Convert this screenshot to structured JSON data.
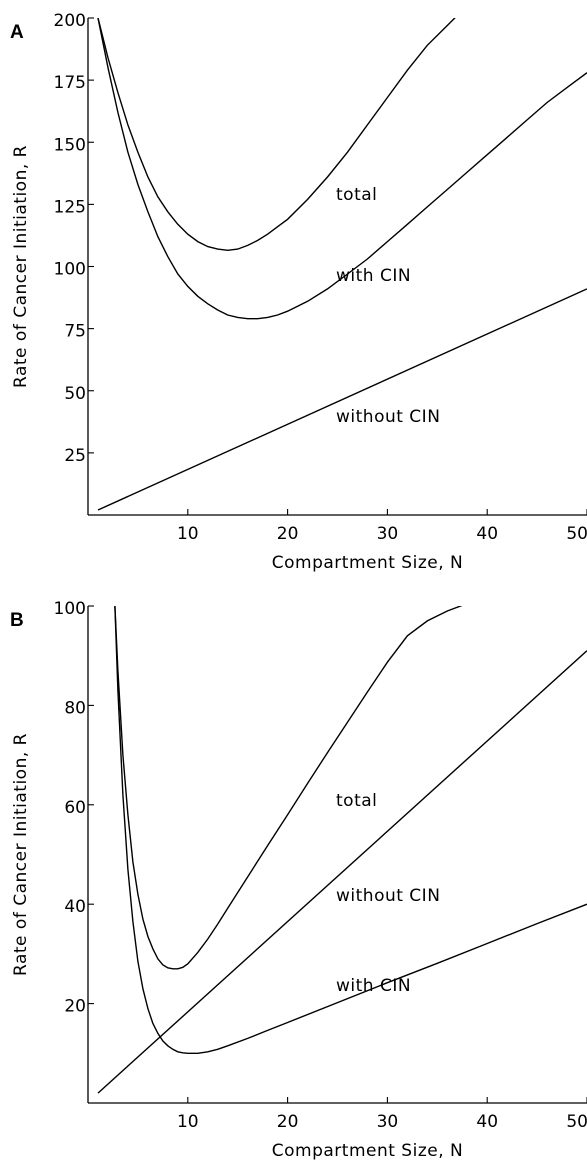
{
  "chart_data": [
    {
      "type": "line",
      "panel_label": "A",
      "xlabel": "Compartment Size, N",
      "ylabel": "Rate of Cancer Initiation, R",
      "xlim": [
        0,
        50
      ],
      "ylim": [
        0,
        200
      ],
      "xticks": [
        10,
        20,
        30,
        40,
        50
      ],
      "yticks": [
        25,
        50,
        75,
        100,
        125,
        150,
        175,
        200
      ],
      "legend": "none",
      "grid": false,
      "series": [
        {
          "name": "total",
          "x": [
            1,
            2,
            3,
            4,
            5,
            6,
            7,
            8,
            9,
            10,
            11,
            12,
            13,
            14,
            15,
            16,
            17,
            18,
            19,
            20,
            22,
            24,
            26,
            28,
            30,
            32,
            34,
            36,
            38
          ],
          "y": [
            200,
            184,
            170,
            157,
            146,
            136,
            128,
            122,
            117,
            113,
            110,
            108,
            107,
            106.5,
            107,
            108.5,
            110.5,
            113,
            116,
            119,
            127,
            136,
            146,
            157,
            168,
            179,
            189,
            197,
            205
          ]
        },
        {
          "name": "with  CIN",
          "x": [
            1,
            2,
            3,
            4,
            5,
            6,
            7,
            8,
            9,
            10,
            11,
            12,
            13,
            14,
            15,
            16,
            17,
            18,
            19,
            20,
            22,
            24,
            26,
            28,
            30,
            32,
            34,
            36,
            38,
            40,
            42,
            44,
            46,
            48,
            50
          ],
          "y": [
            200,
            180,
            162,
            146,
            133,
            122,
            112,
            104,
            97,
            92,
            88,
            85,
            82.5,
            80.5,
            79.5,
            79,
            79,
            79.5,
            80.5,
            82,
            86,
            91,
            97,
            103,
            110,
            117,
            124,
            131,
            138,
            145,
            152,
            159,
            166,
            172,
            178
          ]
        },
        {
          "name": "without  CIN",
          "x": [
            1,
            50
          ],
          "y": [
            2,
            91
          ]
        }
      ],
      "annotations": [
        {
          "text": "total",
          "series": "total"
        },
        {
          "text": "with  CIN",
          "series": "with  CIN"
        },
        {
          "text": "without  CIN",
          "series": "without  CIN"
        }
      ]
    },
    {
      "type": "line",
      "panel_label": "B",
      "xlabel": "Compartment Size, N",
      "ylabel": "Rate of Cancer Initiation, R",
      "xlim": [
        0,
        50
      ],
      "ylim": [
        0,
        100
      ],
      "xticks": [
        10,
        20,
        30,
        40,
        50
      ],
      "yticks": [
        20,
        40,
        60,
        80,
        100
      ],
      "legend": "none",
      "grid": false,
      "series": [
        {
          "name": "total",
          "x": [
            2.7,
            3,
            3.5,
            4,
            4.5,
            5,
            5.5,
            6,
            6.5,
            7,
            7.5,
            8,
            8.5,
            9,
            9.5,
            10,
            11,
            12,
            13,
            14,
            16,
            18,
            20,
            22,
            24,
            26,
            28,
            30,
            32,
            34,
            36,
            38
          ],
          "y": [
            100,
            87,
            70,
            58,
            48.5,
            42,
            37,
            33.5,
            31,
            29,
            27.8,
            27.2,
            27,
            27,
            27.3,
            28,
            30.3,
            33,
            36,
            39.2,
            45.5,
            51.8,
            58,
            64.3,
            70.5,
            76.6,
            82.7,
            88.7,
            94,
            97,
            99,
            100.5
          ]
        },
        {
          "name": "without  CIN",
          "x": [
            1,
            50
          ],
          "y": [
            2,
            91
          ]
        },
        {
          "name": "with  CIN",
          "x": [
            2.7,
            3,
            3.5,
            4,
            4.5,
            5,
            5.5,
            6,
            6.5,
            7,
            7.5,
            8,
            8.5,
            9,
            9.5,
            10,
            11,
            12,
            13,
            14,
            16,
            18,
            20,
            25,
            30,
            35,
            40,
            45,
            50
          ],
          "y": [
            100,
            83,
            62,
            47,
            36.5,
            28.5,
            23,
            19,
            16,
            14,
            12.5,
            11.5,
            10.8,
            10.3,
            10.1,
            10,
            10,
            10.3,
            10.8,
            11.5,
            13,
            14.6,
            16.2,
            20.2,
            24.2,
            28.1,
            32.1,
            36.1,
            40
          ]
        }
      ],
      "annotations": [
        {
          "text": "total",
          "series": "total"
        },
        {
          "text": "without  CIN",
          "series": "without  CIN"
        },
        {
          "text": "with  CIN",
          "series": "with  CIN"
        }
      ]
    }
  ]
}
